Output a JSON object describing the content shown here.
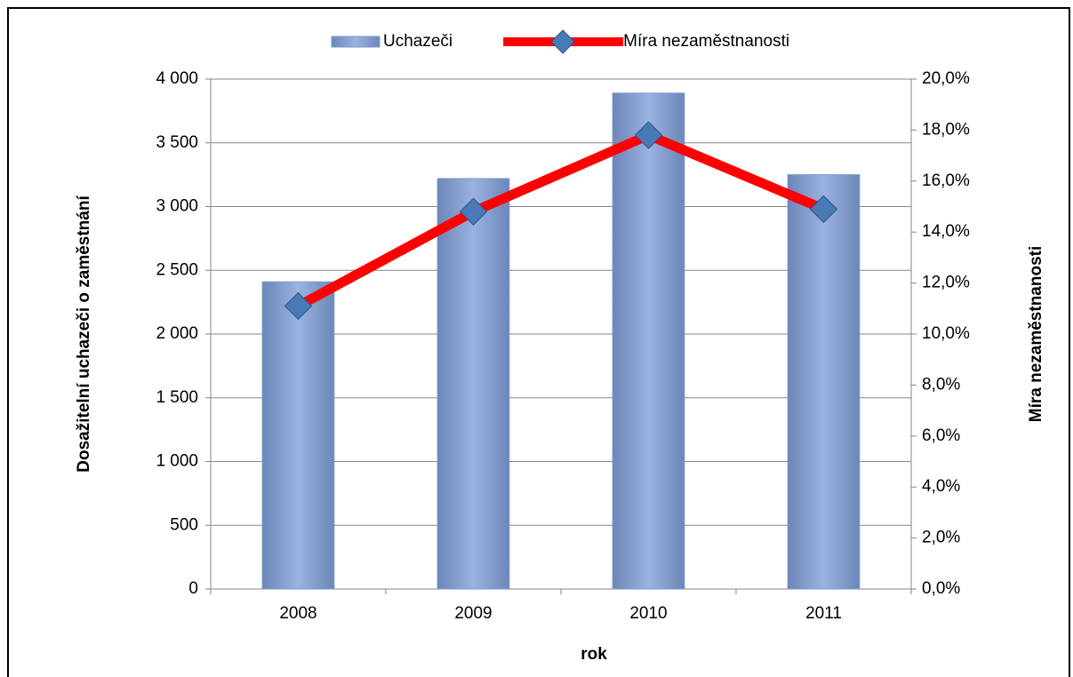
{
  "chart_data": {
    "type": "bar_line",
    "categories": [
      "2008",
      "2009",
      "2010",
      "2011"
    ],
    "series": [
      {
        "name": "Uchazeči",
        "type": "bar",
        "color": "#7f9acb",
        "values": [
          2410,
          3220,
          3890,
          3250
        ]
      },
      {
        "name": "Míra nezaměstnanosti",
        "type": "line",
        "axis": "y2",
        "color": "#ff0000",
        "marker_color": "#4a7ab5",
        "values": [
          11.1,
          14.8,
          17.8,
          14.9
        ]
      }
    ],
    "x_label": "rok",
    "y_label": "Dosažitelní uchazeči o zaměstnání",
    "y2_label": "Míra nezaměstnanosti",
    "ylim": [
      0,
      4000
    ],
    "yticks": [
      0,
      500,
      {
        "value": 1000,
        "label": "1 000"
      },
      {
        "value": 1500,
        "label": "1 500"
      },
      {
        "value": 2000,
        "label": "2 000"
      },
      {
        "value": 2500,
        "label": "2 500"
      },
      {
        "value": 3000,
        "label": "3 000"
      },
      {
        "value": 3500,
        "label": "3 500"
      },
      {
        "value": 4000,
        "label": "4 000"
      }
    ],
    "y2lim": [
      0,
      20
    ],
    "y2ticks": [
      {
        "value": 0,
        "label": "0,0%"
      },
      {
        "value": 2,
        "label": "2,0%"
      },
      {
        "value": 4,
        "label": "4,0%"
      },
      {
        "value": 6,
        "label": "6,0%"
      },
      {
        "value": 8,
        "label": "8,0%"
      },
      {
        "value": 10,
        "label": "10,0%"
      },
      {
        "value": 12,
        "label": "12,0%"
      },
      {
        "value": 14,
        "label": "14,0%"
      },
      {
        "value": 16,
        "label": "16,0%"
      },
      {
        "value": 18,
        "label": "18,0%"
      },
      {
        "value": 20,
        "label": "20,0%"
      }
    ],
    "grid": true,
    "legend": "top"
  }
}
